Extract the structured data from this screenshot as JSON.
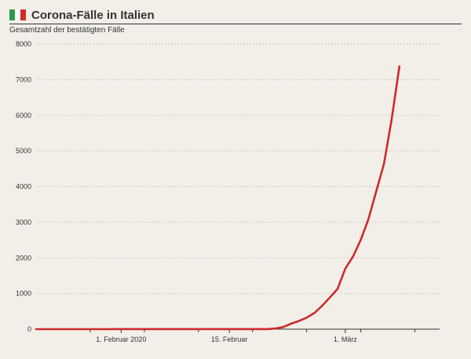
{
  "header": {
    "title": "Corona-Fälle in Italien",
    "subtitle": "Gesamtzahl der bestätigten Fälle",
    "flag_colors": [
      "#2e9a4a",
      "#ffffff",
      "#d02b2b"
    ]
  },
  "colors": {
    "line": "#cc2b2b",
    "grid": "#cfcac1",
    "axis": "#333333",
    "background": "#f2efe9"
  },
  "chart_data": {
    "type": "line",
    "title": "Corona-Fälle in Italien",
    "subtitle": "Gesamtzahl der bestätigten Fälle",
    "xlabel": "",
    "ylabel": "",
    "ylim": [
      0,
      8000
    ],
    "xlim": [
      "2020-01-21",
      "2020-03-13"
    ],
    "y_ticks": [
      0,
      1000,
      2000,
      3000,
      4000,
      5000,
      6000,
      7000,
      8000
    ],
    "x_ticks": [
      {
        "date": "2020-02-01",
        "label": "1. Februar 2020"
      },
      {
        "date": "2020-02-15",
        "label": "15. Februar"
      },
      {
        "date": "2020-03-01",
        "label": "1. März"
      }
    ],
    "grid": "horizontal",
    "series": [
      {
        "x": [
          "2020-01-21",
          "2020-01-22",
          "2020-01-23",
          "2020-01-24",
          "2020-01-25",
          "2020-01-26",
          "2020-01-27",
          "2020-01-28",
          "2020-01-29",
          "2020-01-30",
          "2020-01-31",
          "2020-02-01",
          "2020-02-02",
          "2020-02-03",
          "2020-02-04",
          "2020-02-05",
          "2020-02-06",
          "2020-02-07",
          "2020-02-08",
          "2020-02-09",
          "2020-02-10",
          "2020-02-11",
          "2020-02-12",
          "2020-02-13",
          "2020-02-14",
          "2020-02-15",
          "2020-02-16",
          "2020-02-17",
          "2020-02-18",
          "2020-02-19",
          "2020-02-20",
          "2020-02-21",
          "2020-02-22",
          "2020-02-23",
          "2020-02-24",
          "2020-02-25",
          "2020-02-26",
          "2020-02-27",
          "2020-02-28",
          "2020-02-29",
          "2020-03-01",
          "2020-03-02",
          "2020-03-03",
          "2020-03-04",
          "2020-03-05",
          "2020-03-06",
          "2020-03-07",
          "2020-03-08"
        ],
        "values": [
          0,
          0,
          0,
          0,
          0,
          0,
          0,
          0,
          0,
          0,
          2,
          2,
          2,
          2,
          2,
          2,
          2,
          3,
          3,
          3,
          3,
          3,
          3,
          3,
          3,
          3,
          3,
          3,
          3,
          3,
          3,
          20,
          62,
          155,
          229,
          322,
          453,
          655,
          888,
          1128,
          1694,
          2036,
          2502,
          3089,
          3858,
          4636,
          5883,
          7375
        ]
      }
    ]
  }
}
